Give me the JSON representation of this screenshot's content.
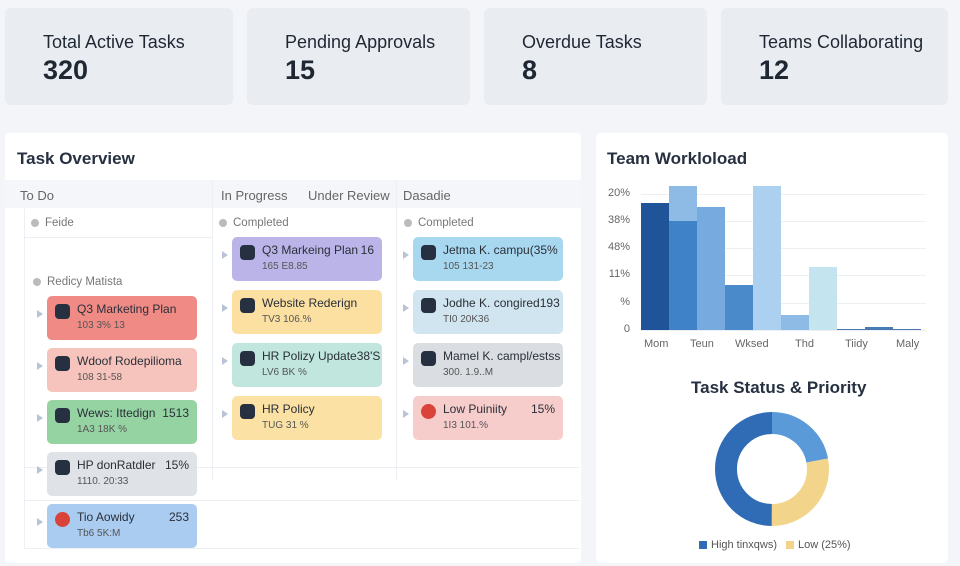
{
  "stats": [
    {
      "label": "Total Active Tasks",
      "value": "320"
    },
    {
      "label": "Pending Approvals",
      "value": "15"
    },
    {
      "label": "Overdue Tasks",
      "value": "8"
    },
    {
      "label": "Teams Collaborating",
      "value": "12"
    }
  ],
  "task_overview": {
    "title": "Task Overview",
    "columns": [
      "To Do",
      "In Progress",
      "Under Review",
      "Dasadie"
    ],
    "col1": {
      "group1": "Feide",
      "group2": "Redicy Matista",
      "cards": [
        {
          "title": "Q3 Marketing Plan",
          "pct": "",
          "sub": "103 3% 13",
          "color": "#f08a85",
          "icon": "flag-icon"
        },
        {
          "title": "Wdoof Rodepilioma",
          "pct": "",
          "sub": "108 31-58",
          "color": "#f7c4bd",
          "icon": "doc-icon"
        },
        {
          "title": "Wews: Ittedign",
          "pct": "1513",
          "sub": "1A3 18K %",
          "color": "#95d4a2",
          "icon": "flag-icon"
        },
        {
          "title": "HP donRatdler",
          "pct": "15%",
          "sub": "1110. 20:33",
          "color": "#dfe2e6",
          "icon": "doc-icon"
        },
        {
          "title": "Tio Aowidy",
          "pct": "253",
          "sub": "Tb6 5K:M",
          "color": "#a9ccf0",
          "icon": "record-icon"
        }
      ]
    },
    "col2": {
      "group": "Completed",
      "cards": [
        {
          "title": "Q3 Markeing Plan",
          "pct": "16",
          "sub": "165 E8.85",
          "color": "#bab4e8",
          "icon": "flag-icon"
        },
        {
          "title": "Website Rederign",
          "pct": "",
          "sub": "TV3 106.%",
          "color": "#fbe0a2",
          "icon": "flag-icon"
        },
        {
          "title": "HR Polizy Update",
          "pct": "38'S",
          "sub": "LV6 BK %",
          "color": "#c0e6de",
          "icon": "flag-icon"
        },
        {
          "title": "HR Policy",
          "pct": "",
          "sub": "TUG 31 %",
          "color": "#fbe2a4",
          "icon": "doc-icon"
        }
      ]
    },
    "col3": {
      "group": "Completed",
      "cards": [
        {
          "title": "Jetma K. campu",
          "pct": "(35%",
          "sub": "105 131-23",
          "color": "#a8d8f0",
          "icon": "doc-icon"
        },
        {
          "title": "Jodhe K. congired",
          "pct": "193",
          "sub": "TI0 20K36",
          "color": "#d0e5ef",
          "icon": "doc-icon"
        },
        {
          "title": "Mamel K. campl/ests",
          "pct": "s",
          "sub": "300. 1.9..M",
          "color": "#dadee3",
          "icon": "doc-icon"
        },
        {
          "title": "Low Puiniity",
          "pct": "15%",
          "sub": "1I3 101.%",
          "color": "#f7cdcc",
          "icon": "record-icon"
        }
      ]
    }
  },
  "chart_data": [
    {
      "type": "bar",
      "title": "Team Workloload",
      "ytick_labels": [
        "0",
        "%",
        "11%",
        "48%",
        "38%",
        "20%"
      ],
      "categories": [
        "Mom",
        "Teun",
        "Wksed",
        "Thd",
        "Tiidy",
        "Maly"
      ],
      "bars": [
        4.67,
        5.28,
        4.5,
        1.65,
        5.28,
        0.55,
        2.3,
        0.04,
        0.12,
        0.04
      ],
      "overlay": {
        "index": 1,
        "value": 3.99
      },
      "colors": [
        "#1f5598",
        "#8dbbe6",
        "#77abdf",
        "#4a8acb",
        "#acd0f0",
        "#8dbbe6",
        "#c4e4f0",
        "#4a7ab0",
        "#4a7ab0",
        "#4a7ab0"
      ],
      "grid": true
    },
    {
      "type": "pie",
      "title": "Task Status & Priority",
      "slices": [
        {
          "value": 50,
          "color": "#2f6cb5"
        },
        {
          "value": 22,
          "color": "#5b9ad9"
        },
        {
          "value": 28,
          "color": "#f2d58a"
        }
      ],
      "legend": [
        {
          "label": "High tinxqws)",
          "color": "#2f6cb5"
        },
        {
          "label": "Low (25%)",
          "color": "#f2d58a"
        }
      ],
      "legend_position": "bottom"
    }
  ]
}
